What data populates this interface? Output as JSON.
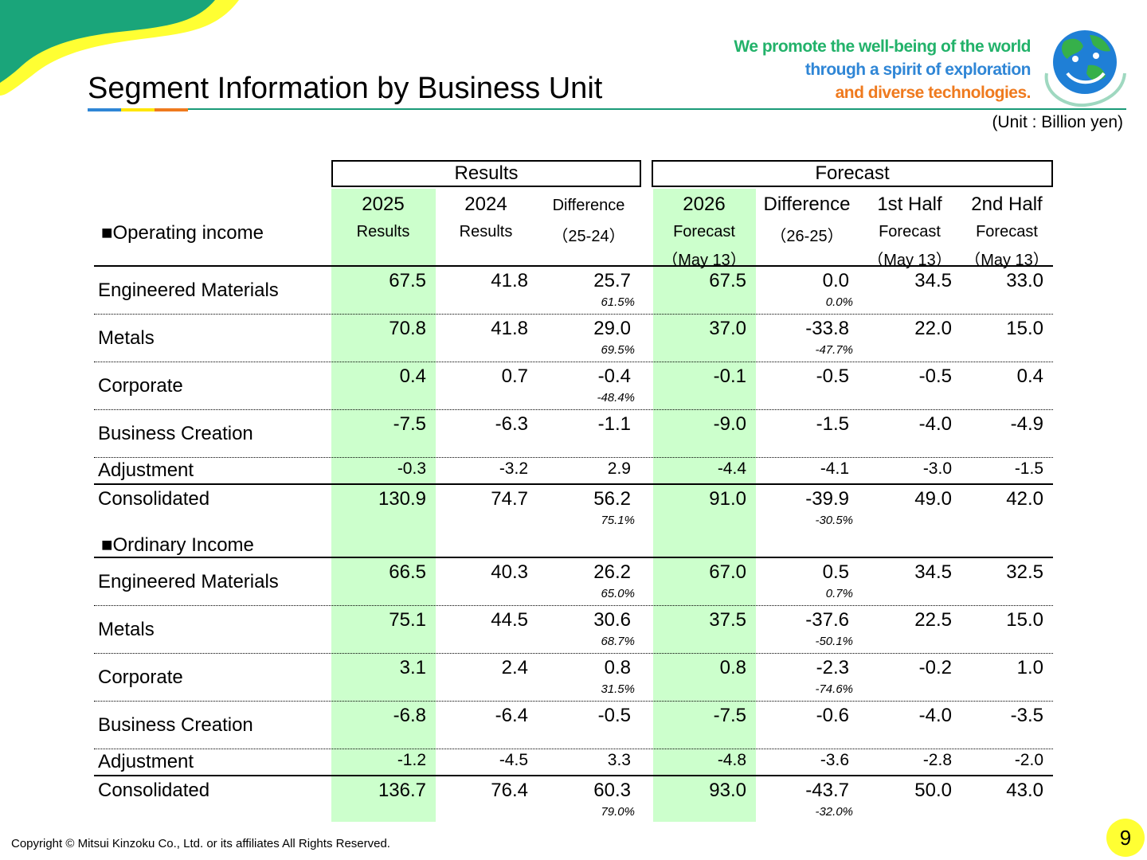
{
  "header": {
    "title": "Segment Information by Business Unit",
    "tagline": [
      "We promote the well-being of the world",
      "through a spirit of exploration",
      "and diverse technologies."
    ],
    "unit": "(Unit : Billion yen)"
  },
  "table": {
    "group_results": "Results",
    "group_forecast": "Forecast",
    "columns": [
      {
        "top": "2025",
        "sub1": "Results",
        "sub2": ""
      },
      {
        "top": "2024",
        "sub1": "Results",
        "sub2": ""
      },
      {
        "top": "Difference",
        "sub1": "（25-24）",
        "sub2": ""
      },
      {
        "top": "2026",
        "sub1": "Forecast",
        "sub2": "（May 13）"
      },
      {
        "top": "Difference",
        "sub1": "（26-25）",
        "sub2": ""
      },
      {
        "top": "1st Half",
        "sub1": "Forecast",
        "sub2": "（May 13）"
      },
      {
        "top": "2nd Half",
        "sub1": "Forecast",
        "sub2": "（May 13）"
      }
    ],
    "section_operating": "■Operating income",
    "section_ordinary": "■Ordinary Income",
    "operating": [
      {
        "label": "Engineered Materials",
        "values": [
          "67.5",
          "41.8",
          "25.7",
          "67.5",
          "0.0",
          "34.5",
          "33.0"
        ],
        "pct": [
          "61.5%",
          "0.0%"
        ]
      },
      {
        "label": "Metals",
        "values": [
          "70.8",
          "41.8",
          "29.0",
          "37.0",
          "-33.8",
          "22.0",
          "15.0"
        ],
        "pct": [
          "69.5%",
          "-47.7%"
        ]
      },
      {
        "label": "Corporate",
        "values": [
          "0.4",
          "0.7",
          "-0.4",
          "-0.1",
          "-0.5",
          "-0.5",
          "0.4"
        ],
        "pct": [
          "-48.4%",
          ""
        ]
      },
      {
        "label": "Business Creation",
        "values": [
          "-7.5",
          "-6.3",
          "-1.1",
          "-9.0",
          "-1.5",
          "-4.0",
          "-4.9"
        ],
        "pct": [
          "",
          ""
        ]
      },
      {
        "label": "Adjustment",
        "values": [
          "-0.3",
          "-3.2",
          "2.9",
          "-4.4",
          "-4.1",
          "-3.0",
          "-1.5"
        ],
        "pct": [
          "",
          ""
        ]
      },
      {
        "label": "Consolidated",
        "values": [
          "130.9",
          "74.7",
          "56.2",
          "91.0",
          "-39.9",
          "49.0",
          "42.0"
        ],
        "pct": [
          "75.1%",
          "-30.5%"
        ]
      }
    ],
    "ordinary": [
      {
        "label": "Engineered Materials",
        "values": [
          "66.5",
          "40.3",
          "26.2",
          "67.0",
          "0.5",
          "34.5",
          "32.5"
        ],
        "pct": [
          "65.0%",
          "0.7%"
        ]
      },
      {
        "label": "Metals",
        "values": [
          "75.1",
          "44.5",
          "30.6",
          "37.5",
          "-37.6",
          "22.5",
          "15.0"
        ],
        "pct": [
          "68.7%",
          "-50.1%"
        ]
      },
      {
        "label": "Corporate",
        "values": [
          "3.1",
          "2.4",
          "0.8",
          "0.8",
          "-2.3",
          "-0.2",
          "1.0"
        ],
        "pct": [
          "31.5%",
          "-74.6%"
        ]
      },
      {
        "label": "Business Creation",
        "values": [
          "-6.8",
          "-6.4",
          "-0.5",
          "-7.5",
          "-0.6",
          "-4.0",
          "-3.5"
        ],
        "pct": [
          "",
          ""
        ]
      },
      {
        "label": "Adjustment",
        "values": [
          "-1.2",
          "-4.5",
          "3.3",
          "-4.8",
          "-3.6",
          "-2.8",
          "-2.0"
        ],
        "pct": [
          "",
          ""
        ]
      },
      {
        "label": "Consolidated",
        "values": [
          "136.7",
          "76.4",
          "60.3",
          "93.0",
          "-43.7",
          "50.0",
          "43.0"
        ],
        "pct": [
          "79.0%",
          "-32.0%"
        ]
      }
    ]
  },
  "footer": {
    "copyright": "Copyright © Mitsui Kinzoku Co., Ltd. or its affiliates All Rights Reserved.",
    "page": "9"
  },
  "colors": {
    "highlight": "#ccffcc",
    "brand_green": "#1a9a78",
    "yellow": "#ffff33"
  }
}
